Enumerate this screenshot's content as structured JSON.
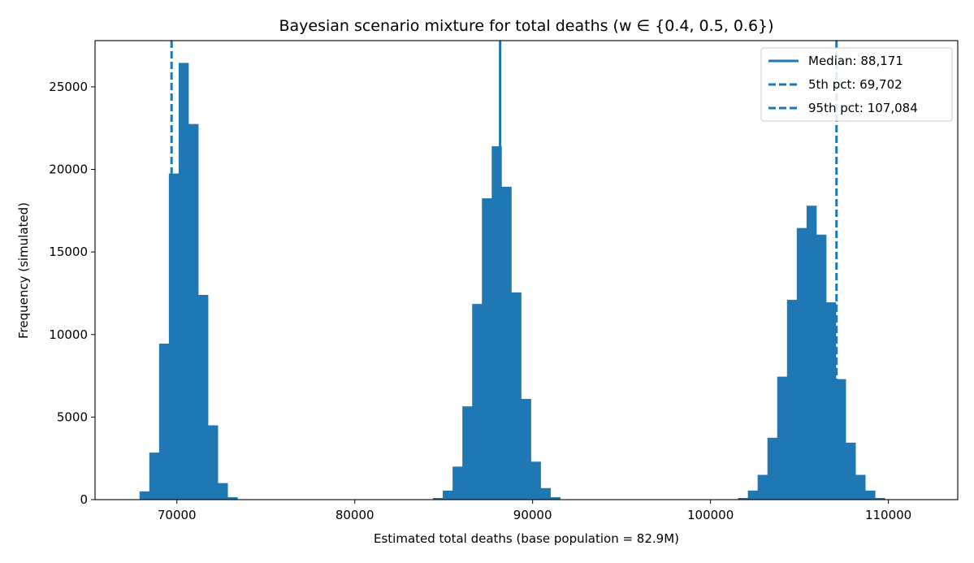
{
  "chart_data": {
    "type": "histogram",
    "title": "Bayesian scenario mixture for total deaths (w ∈ {0.4, 0.5, 0.6})",
    "xlabel": "Estimated total deaths (base population = 82.9M)",
    "ylabel": "Frequency (simulated)",
    "xlim": [
      65400,
      113900
    ],
    "ylim": [
      0,
      27800
    ],
    "xticks": [
      70000,
      80000,
      90000,
      100000,
      110000
    ],
    "yticks": [
      0,
      5000,
      10000,
      15000,
      20000,
      25000
    ],
    "bin_width": 550,
    "color": "#1f77b4",
    "bins": [
      {
        "start": 67350,
        "count": 20
      },
      {
        "start": 67900,
        "count": 500
      },
      {
        "start": 68450,
        "count": 2850
      },
      {
        "start": 69000,
        "count": 9450
      },
      {
        "start": 69550,
        "count": 19750
      },
      {
        "start": 70100,
        "count": 26450
      },
      {
        "start": 70650,
        "count": 22750
      },
      {
        "start": 71200,
        "count": 12400
      },
      {
        "start": 71750,
        "count": 4500
      },
      {
        "start": 72300,
        "count": 1000
      },
      {
        "start": 72850,
        "count": 150
      },
      {
        "start": 84400,
        "count": 100
      },
      {
        "start": 84950,
        "count": 550
      },
      {
        "start": 85500,
        "count": 2000
      },
      {
        "start": 86050,
        "count": 5650
      },
      {
        "start": 86600,
        "count": 11850
      },
      {
        "start": 87150,
        "count": 18250
      },
      {
        "start": 87700,
        "count": 21400
      },
      {
        "start": 88250,
        "count": 18950
      },
      {
        "start": 88800,
        "count": 12550
      },
      {
        "start": 89350,
        "count": 6100
      },
      {
        "start": 89900,
        "count": 2300
      },
      {
        "start": 90450,
        "count": 700
      },
      {
        "start": 91000,
        "count": 150
      },
      {
        "start": 101550,
        "count": 100
      },
      {
        "start": 102100,
        "count": 550
      },
      {
        "start": 102650,
        "count": 1500
      },
      {
        "start": 103200,
        "count": 3750
      },
      {
        "start": 103750,
        "count": 7450
      },
      {
        "start": 104300,
        "count": 12100
      },
      {
        "start": 104850,
        "count": 16450
      },
      {
        "start": 105400,
        "count": 17800
      },
      {
        "start": 105950,
        "count": 16050
      },
      {
        "start": 106500,
        "count": 11950
      },
      {
        "start": 107050,
        "count": 7300
      },
      {
        "start": 107600,
        "count": 3450
      },
      {
        "start": 108150,
        "count": 1500
      },
      {
        "start": 108700,
        "count": 550
      },
      {
        "start": 109250,
        "count": 100
      }
    ],
    "vlines": [
      {
        "label": "Median: 88,171",
        "value": 88171,
        "style": "solid"
      },
      {
        "label": "5th pct: 69,702",
        "value": 69702,
        "style": "dashed"
      },
      {
        "label": "95th pct: 107,084",
        "value": 107084,
        "style": "dashed"
      }
    ],
    "legend_position": "top-right"
  }
}
